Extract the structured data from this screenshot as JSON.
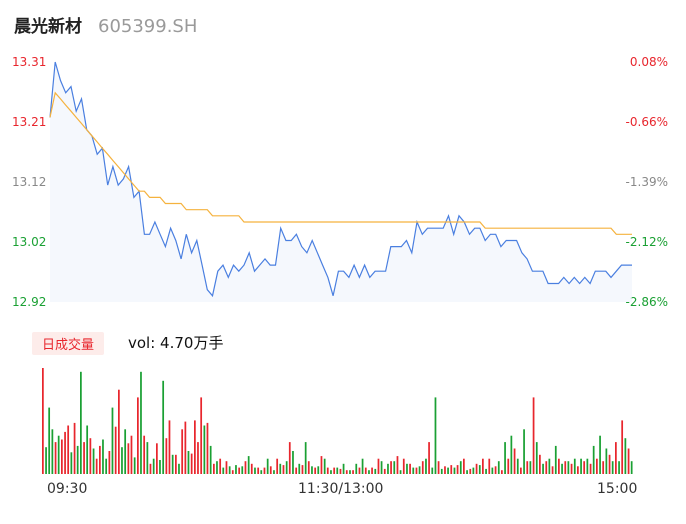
{
  "header": {
    "name": "晨光新材",
    "code": "605399.SH"
  },
  "colors": {
    "up": "#e8262d",
    "down": "#1aa033",
    "flat": "#888888",
    "price_line": "#4a7fe0",
    "avg_line": "#f5b23e"
  },
  "chart_data": [
    {
      "type": "line",
      "y_left_ticks": [
        "13.31",
        "13.21",
        "13.12",
        "13.02",
        "12.92"
      ],
      "y_right_ticks": [
        "0.08%",
        "-0.66%",
        "-1.39%",
        "-2.12%",
        "-2.86%"
      ],
      "ylim": [
        12.92,
        13.31
      ],
      "x_ticks": [
        "09:30",
        "11:30/13:00",
        "15:00"
      ],
      "series": [
        {
          "values": [
            13.22,
            13.31,
            13.28,
            13.26,
            13.27,
            13.23,
            13.25,
            13.2,
            13.19,
            13.16,
            13.17,
            13.11,
            13.14,
            13.11,
            13.12,
            13.14,
            13.09,
            13.1,
            13.03,
            13.03,
            13.05,
            13.03,
            13.01,
            13.04,
            13.02,
            12.99,
            13.03,
            13.0,
            13.02,
            12.98,
            12.94,
            12.93,
            12.97,
            12.98,
            12.96,
            12.98,
            12.97,
            12.98,
            13.0,
            12.97,
            12.98,
            12.99,
            12.98,
            12.98,
            13.04,
            13.02,
            13.02,
            13.03,
            13.01,
            13.0,
            13.02,
            13.0,
            12.98,
            12.96,
            12.93,
            12.97,
            12.97,
            12.96,
            12.98,
            12.96,
            12.98,
            12.96,
            12.97,
            12.97,
            12.97,
            13.01,
            13.01,
            13.01,
            13.02,
            13.0,
            13.05,
            13.03,
            13.04,
            13.04,
            13.04,
            13.04,
            13.06,
            13.03,
            13.06,
            13.05,
            13.03,
            13.04,
            13.04,
            13.02,
            13.03,
            13.03,
            13.01,
            13.02,
            13.02,
            13.02,
            13.0,
            12.99,
            12.97,
            12.97,
            12.97,
            12.95,
            12.95,
            12.95,
            12.96,
            12.95,
            12.96,
            12.95,
            12.96,
            12.95,
            12.97,
            12.97,
            12.97,
            12.96,
            12.97,
            12.98,
            12.98,
            12.98
          ],
          "color": "#4a7fe0"
        },
        {
          "values": [
            13.22,
            13.26,
            13.25,
            13.24,
            13.23,
            13.22,
            13.21,
            13.2,
            13.19,
            13.18,
            13.17,
            13.16,
            13.15,
            13.14,
            13.13,
            13.12,
            13.11,
            13.1,
            13.1,
            13.09,
            13.09,
            13.09,
            13.08,
            13.08,
            13.08,
            13.08,
            13.07,
            13.07,
            13.07,
            13.07,
            13.07,
            13.06,
            13.06,
            13.06,
            13.06,
            13.06,
            13.06,
            13.05,
            13.05,
            13.05,
            13.05,
            13.05,
            13.05,
            13.05,
            13.05,
            13.05,
            13.05,
            13.05,
            13.05,
            13.05,
            13.05,
            13.05,
            13.05,
            13.05,
            13.05,
            13.05,
            13.05,
            13.05,
            13.05,
            13.05,
            13.05,
            13.05,
            13.05,
            13.05,
            13.05,
            13.05,
            13.05,
            13.05,
            13.05,
            13.05,
            13.05,
            13.05,
            13.05,
            13.05,
            13.05,
            13.05,
            13.05,
            13.05,
            13.05,
            13.05,
            13.05,
            13.05,
            13.05,
            13.04,
            13.04,
            13.04,
            13.04,
            13.04,
            13.04,
            13.04,
            13.04,
            13.04,
            13.04,
            13.04,
            13.04,
            13.04,
            13.04,
            13.04,
            13.04,
            13.04,
            13.04,
            13.04,
            13.04,
            13.04,
            13.04,
            13.04,
            13.04,
            13.04,
            13.03,
            13.03,
            13.03,
            13.03
          ],
          "color": "#f5b23e"
        }
      ]
    },
    {
      "type": "bar",
      "volume_label": "日成交量",
      "volume_text": "vol: 4.70万手",
      "values": [
        83,
        21,
        52,
        35,
        25,
        30,
        27,
        33,
        38,
        17,
        40,
        22,
        80,
        25,
        38,
        28,
        20,
        12,
        22,
        27,
        12,
        18,
        52,
        37,
        66,
        21,
        35,
        24,
        30,
        13,
        60,
        80,
        30,
        25,
        8,
        12,
        24,
        11,
        73,
        28,
        42,
        15,
        15,
        8,
        35,
        41,
        18,
        16,
        42,
        25,
        60,
        38,
        40,
        22,
        8,
        10,
        12,
        5,
        10,
        6,
        3,
        7,
        5,
        6,
        10,
        14,
        8,
        5,
        5,
        3,
        5,
        12,
        6,
        3,
        12,
        8,
        7,
        10,
        25,
        18,
        5,
        8,
        7,
        25,
        10,
        6,
        5,
        6,
        14,
        12,
        5,
        3,
        5,
        5,
        4,
        8,
        3,
        3,
        3,
        8,
        5,
        12,
        5,
        3,
        5,
        4,
        12,
        10,
        4,
        8,
        10,
        10,
        14,
        3,
        12,
        8,
        8,
        5,
        5,
        6,
        10,
        12,
        25,
        5,
        60,
        10,
        4,
        6,
        5,
        7,
        5,
        7,
        10,
        12,
        3,
        4,
        5,
        8,
        7,
        12,
        4,
        12,
        5,
        6,
        10,
        3,
        25,
        12,
        30,
        20,
        12,
        5,
        35,
        10,
        10,
        60,
        25,
        15,
        8,
        10,
        12,
        6,
        22,
        12,
        8,
        10,
        10,
        8,
        12,
        6,
        12,
        10,
        12,
        8,
        22,
        12,
        30,
        10,
        20,
        15,
        10,
        25,
        10,
        42,
        28,
        20,
        10
      ],
      "bar_colors": [
        "up",
        "down",
        "down",
        "down",
        "up",
        "down",
        "up",
        "up",
        "up",
        "down",
        "up",
        "down",
        "down",
        "up",
        "down",
        "up",
        "down",
        "up",
        "up",
        "down",
        "down",
        "up",
        "down",
        "up",
        "up",
        "down",
        "down",
        "up",
        "up",
        "down",
        "up",
        "down",
        "up",
        "down",
        "up",
        "down",
        "up",
        "down",
        "down",
        "up",
        "up",
        "down",
        "up",
        "down",
        "up",
        "up",
        "down",
        "up",
        "up",
        "up",
        "up",
        "down",
        "up",
        "down",
        "up",
        "down",
        "up",
        "down",
        "up",
        "down",
        "up",
        "down",
        "up",
        "down",
        "up",
        "down",
        "up",
        "down",
        "up",
        "down",
        "up",
        "down",
        "up",
        "down",
        "up",
        "down",
        "up",
        "down",
        "up",
        "down",
        "up",
        "down",
        "up",
        "down",
        "up",
        "down",
        "up",
        "down",
        "up",
        "down",
        "up",
        "down",
        "up",
        "down",
        "up",
        "down",
        "up",
        "down",
        "up",
        "down",
        "up",
        "down",
        "up",
        "down",
        "up",
        "down",
        "up",
        "down",
        "up",
        "down",
        "up",
        "down",
        "up",
        "down",
        "up",
        "down",
        "up",
        "down",
        "up",
        "down",
        "up",
        "down",
        "up",
        "down",
        "down",
        "up",
        "down",
        "up",
        "down",
        "up",
        "down",
        "up",
        "down",
        "up",
        "down",
        "up",
        "down",
        "up",
        "down",
        "up",
        "down",
        "up",
        "down",
        "up",
        "down",
        "up",
        "down",
        "up",
        "down",
        "up",
        "down",
        "up",
        "down",
        "up",
        "down",
        "up",
        "down",
        "up",
        "down",
        "up",
        "down",
        "up",
        "down",
        "up",
        "down",
        "up",
        "down",
        "up",
        "down",
        "up",
        "down",
        "up",
        "down",
        "up",
        "down",
        "up",
        "down",
        "up",
        "down",
        "up",
        "down",
        "up",
        "down",
        "up",
        "down",
        "up"
      ]
    }
  ]
}
